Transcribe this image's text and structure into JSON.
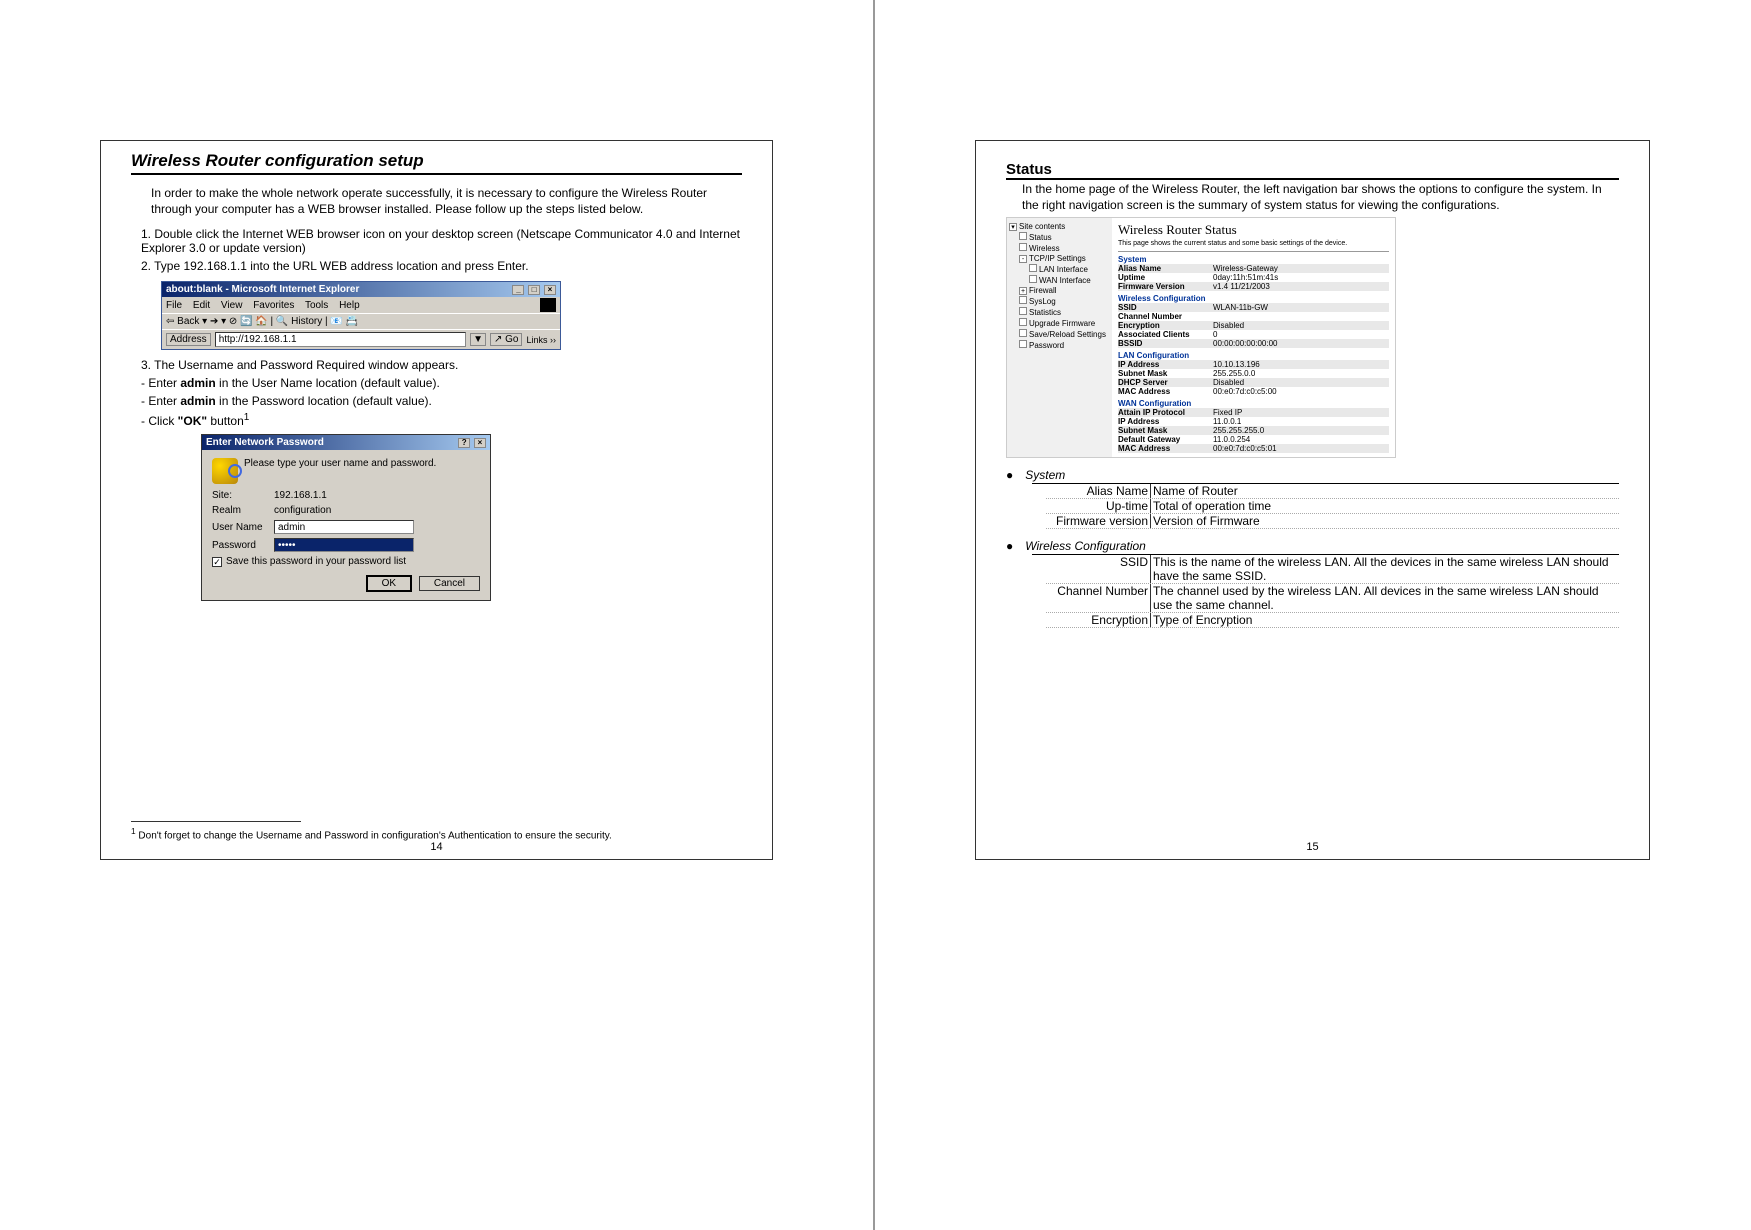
{
  "page14": {
    "title": "Wireless Router configuration setup",
    "intro": "In order to make the whole network operate successfully, it is necessary to configure the Wireless Router through your computer has a WEB browser installed. Please follow up the steps listed below.",
    "step1": "1. Double click the Internet WEB browser icon on your desktop screen (Netscape Communicator 4.0 and Internet Explorer 3.0 or update version)",
    "step2": "2. Type 192.168.1.1 into the URL WEB address location and press Enter.",
    "step3": "3. The Username and Password Required window appears.",
    "step3a_pre": "-      Enter ",
    "step3a_bold": "admin",
    "step3a_post": " in the User Name location (default value).",
    "step3b_pre": "-      Enter ",
    "step3b_bold": "admin",
    "step3b_post": " in the Password location (default value).",
    "step3c_pre": "-      Click ",
    "step3c_bold": "\"OK\"",
    "step3c_post": " button",
    "step3c_sup": "1",
    "ie": {
      "title": "about:blank - Microsoft Internet Explorer",
      "menu": [
        "File",
        "Edit",
        "View",
        "Favorites",
        "Tools",
        "Help"
      ],
      "toolbar": "⇦ Back  ▾   ➔  ▾   ⊘  🔄  🏠  |  🔍 History  |  📧  📇",
      "addr_label": "Address",
      "addr_value": "http://192.168.1.1",
      "go": "↗ Go",
      "links": "Links ››"
    },
    "pw": {
      "title": "Enter Network Password",
      "prompt": "Please type your user name and password.",
      "site_lbl": "Site:",
      "site_val": "192.168.1.1",
      "realm_lbl": "Realm",
      "realm_val": "configuration",
      "user_lbl": "User Name",
      "user_val": "admin",
      "pass_lbl": "Password",
      "pass_val": "•••••",
      "save": "Save this password in your password list",
      "ok": "OK",
      "cancel": "Cancel"
    },
    "footnote_marker": "1",
    "footnote": " Don't forget to change the Username and Password in configuration's Authentication to ensure the security.",
    "pagenum": "14"
  },
  "page15": {
    "heading": "Status",
    "intro": "In the home page of the Wireless Router, the left navigation bar shows the options to configure the system. In the right navigation screen is the summary of system status for viewing the configurations.",
    "nav": {
      "root": "Site contents",
      "items": [
        "Status",
        "Wireless",
        "TCP/IP Settings",
        "LAN Interface",
        "WAN Interface",
        "Firewall",
        "SysLog",
        "Statistics",
        "Upgrade Firmware",
        "Save/Reload Settings",
        "Password"
      ]
    },
    "status_title": "Wireless Router Status",
    "status_sub": "This page shows the current status and some basic settings of the device.",
    "groups": [
      {
        "h": "System",
        "rows": [
          {
            "k": "Alias Name",
            "v": "Wireless-Gateway"
          },
          {
            "k": "Uptime",
            "v": "0day:11h:51m:41s"
          },
          {
            "k": "Firmware Version",
            "v": "v1.4  11/21/2003"
          }
        ]
      },
      {
        "h": "Wireless Configuration",
        "rows": [
          {
            "k": "SSID",
            "v": "WLAN-11b-GW"
          },
          {
            "k": "Channel Number",
            "v": ""
          },
          {
            "k": "Encryption",
            "v": "Disabled"
          },
          {
            "k": "Associated Clients",
            "v": "0"
          },
          {
            "k": "BSSID",
            "v": "00:00:00:00:00:00"
          }
        ]
      },
      {
        "h": "LAN Configuration",
        "rows": [
          {
            "k": "IP Address",
            "v": "10.10.13.196"
          },
          {
            "k": "Subnet Mask",
            "v": "255.255.0.0"
          },
          {
            "k": "DHCP Server",
            "v": "Disabled"
          },
          {
            "k": "MAC Address",
            "v": "00:e0:7d:c0:c5:00"
          }
        ]
      },
      {
        "h": "WAN Configuration",
        "rows": [
          {
            "k": "Attain IP Protocol",
            "v": "Fixed IP"
          },
          {
            "k": "IP Address",
            "v": "11.0.0.1"
          },
          {
            "k": "Subnet Mask",
            "v": "255.255.255.0"
          },
          {
            "k": "Default Gateway",
            "v": "11.0.0.254"
          },
          {
            "k": "MAC Address",
            "v": "00:e0:7d:c0:c5:01"
          }
        ]
      }
    ],
    "defs_system_h": "System",
    "defs_system": [
      {
        "k": "Alias Name",
        "v": "Name of Router"
      },
      {
        "k": "Up-time",
        "v": "Total of operation time"
      },
      {
        "k": "Firmware version",
        "v": "Version of Firmware"
      }
    ],
    "defs_wc_h": "Wireless Configuration",
    "defs_wc": [
      {
        "k": "SSID",
        "v": "This is the name of the wireless LAN. All the devices in the same wireless LAN should have the same SSID."
      },
      {
        "k": "Channel Number",
        "v": "The channel used by the wireless LAN. All devices in the same wireless LAN should use the same channel."
      },
      {
        "k": "Encryption",
        "v": "Type of Encryption"
      }
    ],
    "pagenum": "15"
  }
}
